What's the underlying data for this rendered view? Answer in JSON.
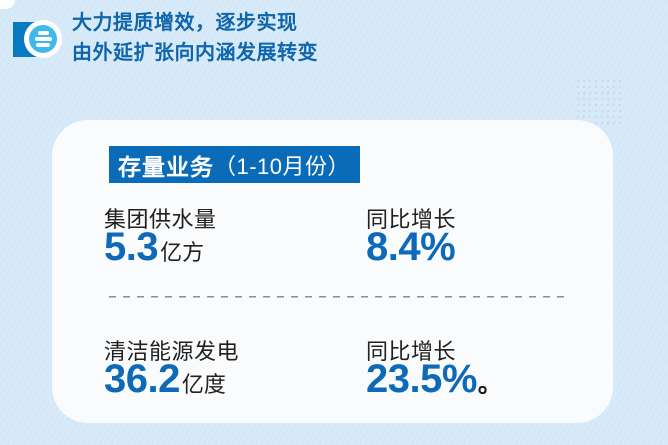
{
  "header": {
    "line1": "大力提质增效，逐步实现",
    "line2": "由外延扩张向内涵发展转变",
    "icon": "list-badge-icon"
  },
  "card": {
    "banner": {
      "title": "存量业务",
      "period": "（1-10月份）"
    },
    "rows": [
      {
        "metric_label": "集团供水量",
        "metric_value": "5.3",
        "metric_unit": "亿方",
        "growth_label": "同比增长",
        "growth_value": "8.4%",
        "growth_suffix": ""
      },
      {
        "metric_label": "清洁能源发电",
        "metric_value": "36.2",
        "metric_unit": "亿度",
        "growth_label": "同比增长",
        "growth_value": "23.5%",
        "growth_suffix": "。"
      }
    ]
  },
  "colors": {
    "background": "#d4e8f7",
    "card_background": "#fafbfd",
    "banner_blue": "#0a6cb8",
    "accent_blue": "#0e6ab8",
    "header_text_blue": "#0f66ad",
    "icon_dark_blue": "#0779c1",
    "icon_light_blue": "#3fb8ea",
    "text_dark": "#212121",
    "divider_gray": "#8c8c8c"
  }
}
